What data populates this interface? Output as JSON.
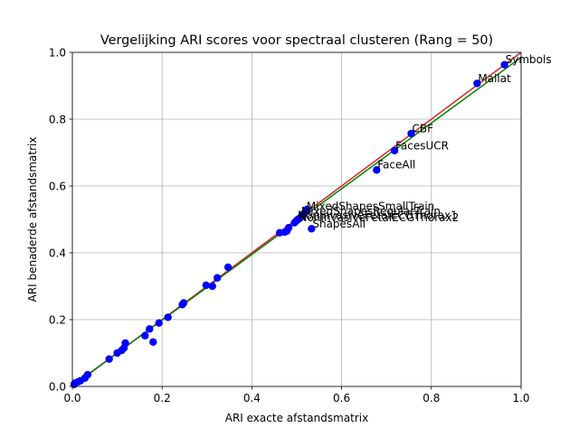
{
  "chart_data": {
    "type": "scatter",
    "title": "Vergelijking ARI scores voor spectraal clusteren (Rang = 50)",
    "xlabel": "ARI exacte afstandsmatrix",
    "ylabel": "ARI benaderde afstandsmatrix",
    "xlim": [
      0.0,
      1.0
    ],
    "ylim": [
      0.0,
      1.0
    ],
    "xticks": [
      "0.0",
      "0.2",
      "0.4",
      "0.6",
      "0.8",
      "1.0"
    ],
    "yticks": [
      "0.0",
      "0.2",
      "0.4",
      "0.6",
      "0.8",
      "1.0"
    ],
    "grid": true,
    "colors": {
      "points": "#0000ff",
      "identity_line": "#d62728",
      "fit_line": "#008000"
    },
    "points": [
      {
        "x": 0.004,
        "y": 0.006
      },
      {
        "x": 0.006,
        "y": 0.01
      },
      {
        "x": 0.013,
        "y": 0.014
      },
      {
        "x": 0.018,
        "y": 0.017
      },
      {
        "x": 0.028,
        "y": 0.025
      },
      {
        "x": 0.034,
        "y": 0.035
      },
      {
        "x": 0.082,
        "y": 0.082
      },
      {
        "x": 0.1,
        "y": 0.1
      },
      {
        "x": 0.11,
        "y": 0.108
      },
      {
        "x": 0.115,
        "y": 0.115
      },
      {
        "x": 0.118,
        "y": 0.13
      },
      {
        "x": 0.162,
        "y": 0.152
      },
      {
        "x": 0.172,
        "y": 0.172
      },
      {
        "x": 0.18,
        "y": 0.133
      },
      {
        "x": 0.193,
        "y": 0.19
      },
      {
        "x": 0.213,
        "y": 0.207
      },
      {
        "x": 0.245,
        "y": 0.245
      },
      {
        "x": 0.248,
        "y": 0.25
      },
      {
        "x": 0.298,
        "y": 0.303
      },
      {
        "x": 0.312,
        "y": 0.3
      },
      {
        "x": 0.323,
        "y": 0.325
      },
      {
        "x": 0.347,
        "y": 0.357
      },
      {
        "x": 0.462,
        "y": 0.46
      },
      {
        "x": 0.473,
        "y": 0.462
      },
      {
        "x": 0.478,
        "y": 0.465
      },
      {
        "x": 0.482,
        "y": 0.475
      },
      {
        "x": 0.495,
        "y": 0.49
      },
      {
        "x": 0.5,
        "y": 0.497
      },
      {
        "x": 0.503,
        "y": 0.5
      },
      {
        "x": 0.508,
        "y": 0.505
      },
      {
        "x": 0.512,
        "y": 0.51
      },
      {
        "x": 0.515,
        "y": 0.515
      },
      {
        "x": 0.518,
        "y": 0.52
      },
      {
        "x": 0.52,
        "y": 0.525
      },
      {
        "x": 0.523,
        "y": 0.53
      },
      {
        "x": 0.533,
        "y": 0.472
      },
      {
        "x": 0.678,
        "y": 0.648
      },
      {
        "x": 0.718,
        "y": 0.706
      },
      {
        "x": 0.755,
        "y": 0.757
      },
      {
        "x": 0.902,
        "y": 0.907
      },
      {
        "x": 0.963,
        "y": 0.963
      }
    ],
    "annotations": [
      {
        "text": "Symbols",
        "x": 0.963,
        "y": 0.963
      },
      {
        "text": "Mallat",
        "x": 0.902,
        "y": 0.907
      },
      {
        "text": "CBF",
        "x": 0.755,
        "y": 0.757
      },
      {
        "text": "FacesUCR",
        "x": 0.718,
        "y": 0.706
      },
      {
        "text": "FaceAll",
        "x": 0.678,
        "y": 0.648
      },
      {
        "text": "MixedShapesSmallTrain",
        "x": 0.52,
        "y": 0.525
      },
      {
        "text": "MixedShapesRegularTrain",
        "x": 0.508,
        "y": 0.51
      },
      {
        "text": "NonInvasiveFetalECGThorax1",
        "x": 0.5,
        "y": 0.497
      },
      {
        "text": "NonInvasiveFetalECGThorax2",
        "x": 0.503,
        "y": 0.49
      },
      {
        "text": "ShapesAll",
        "x": 0.533,
        "y": 0.472
      }
    ],
    "lines": [
      {
        "kind": "identity",
        "x": [
          0.0,
          1.0
        ],
        "y": [
          0.0,
          1.0
        ]
      },
      {
        "kind": "fit",
        "x": [
          0.0,
          1.0
        ],
        "y": [
          0.002,
          0.985
        ]
      }
    ]
  }
}
